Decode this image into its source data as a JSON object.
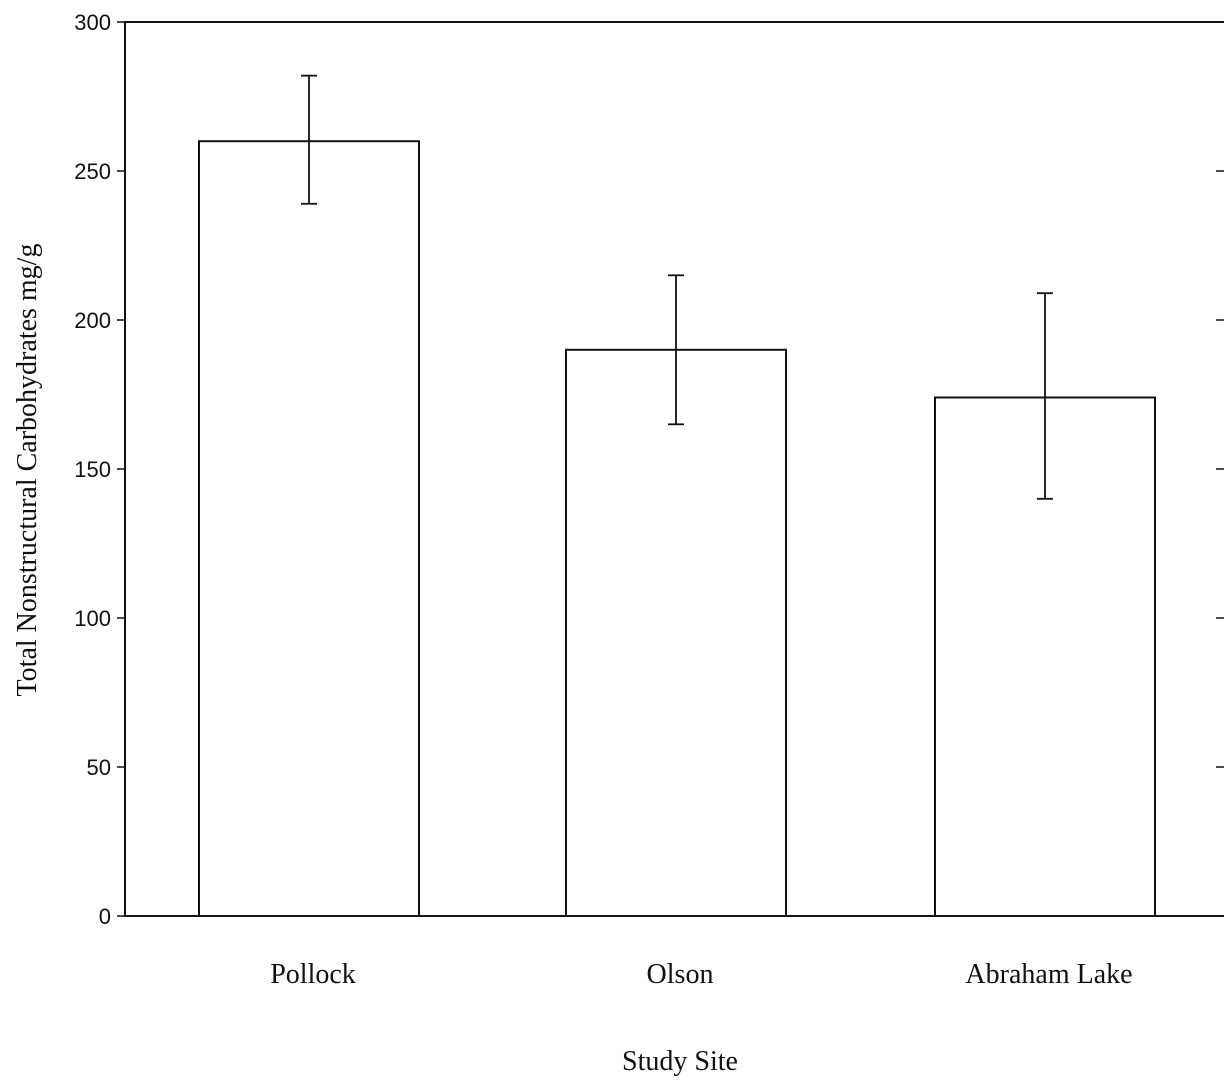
{
  "chart_data": {
    "type": "bar",
    "categories": [
      "Pollock",
      "Olson",
      "Abraham Lake"
    ],
    "values": [
      260,
      190,
      174
    ],
    "error_upper": [
      282,
      215,
      209
    ],
    "error_lower": [
      239,
      165,
      140
    ],
    "xlabel": "Study Site",
    "ylabel": "Total Nonstructural Carbohydrates mg/g",
    "ylim": [
      0,
      300
    ],
    "yticks": [
      "0",
      "50",
      "100",
      "150",
      "200",
      "250",
      "300"
    ],
    "grid": false,
    "legend": "none"
  }
}
